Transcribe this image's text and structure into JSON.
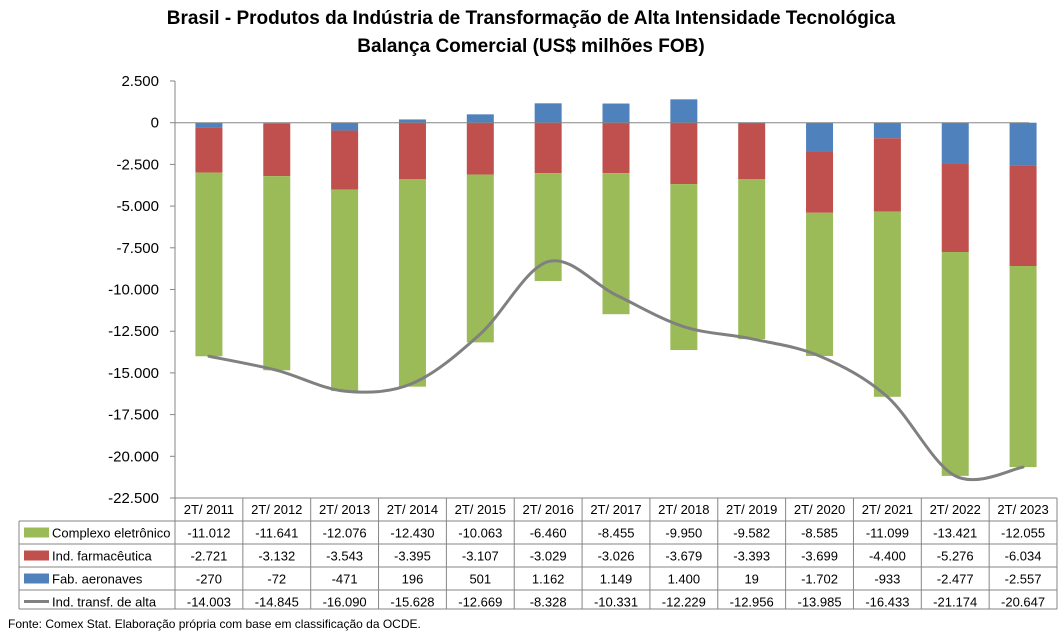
{
  "chart_data": {
    "type": "bar",
    "title": "Brasil - Produtos da Indústria de Transformação de Alta Intensidade Tecnológica",
    "subtitle": "Balança Comercial (US$ milhões FOB)",
    "categories": [
      "2T/ 2011",
      "2T/ 2012",
      "2T/ 2013",
      "2T/ 2014",
      "2T/ 2015",
      "2T/ 2016",
      "2T/ 2017",
      "2T/ 2018",
      "2T/ 2019",
      "2T/ 2020",
      "2T/ 2021",
      "2T/ 2022",
      "2T/ 2023"
    ],
    "ylim": [
      -22500,
      2500
    ],
    "yticks": [
      "2.500",
      "0",
      "-2.500",
      "-5.000",
      "-7.500",
      "-10.000",
      "-12.500",
      "-15.000",
      "-17.500",
      "-20.000",
      "-22.500"
    ],
    "ytick_values": [
      2500,
      0,
      -2500,
      -5000,
      -7500,
      -10000,
      -12500,
      -15000,
      -17500,
      -20000,
      -22500
    ],
    "series": [
      {
        "name": "Complexo eletrônico",
        "kind": "bar",
        "color": "#9bbb59",
        "values": [
          -11012,
          -11641,
          -12076,
          -12430,
          -10063,
          -6460,
          -8455,
          -9950,
          -9582,
          -8585,
          -11099,
          -13421,
          -12055
        ],
        "labels": [
          "-11.012",
          "-11.641",
          "-12.076",
          "-12.430",
          "-10.063",
          "-6.460",
          "-8.455",
          "-9.950",
          "-9.582",
          "-8.585",
          "-11.099",
          "-13.421",
          "-12.055"
        ]
      },
      {
        "name": "Ind. farmacêutica",
        "kind": "bar",
        "color": "#c0504d",
        "values": [
          -2721,
          -3132,
          -3543,
          -3395,
          -3107,
          -3029,
          -3026,
          -3679,
          -3393,
          -3699,
          -4400,
          -5276,
          -6034
        ],
        "labels": [
          "-2.721",
          "-3.132",
          "-3.543",
          "-3.395",
          "-3.107",
          "-3.029",
          "-3.026",
          "-3.679",
          "-3.393",
          "-3.699",
          "-4.400",
          "-5.276",
          "-6.034"
        ]
      },
      {
        "name": "Fab. aeronaves",
        "kind": "bar",
        "color": "#4f81bd",
        "values": [
          -270,
          -72,
          -471,
          196,
          501,
          1162,
          1149,
          1400,
          19,
          -1702,
          -933,
          -2477,
          -2557
        ],
        "labels": [
          "-270",
          "-72",
          "-471",
          "196",
          "501",
          "1.162",
          "1.149",
          "1.400",
          "19",
          "-1.702",
          "-933",
          "-2.477",
          "-2.557"
        ]
      },
      {
        "name": "Ind. transf. de alta",
        "kind": "line",
        "color": "#808080",
        "values": [
          -14003,
          -14845,
          -16090,
          -15628,
          -12669,
          -8328,
          -10331,
          -12229,
          -12956,
          -13985,
          -16433,
          -21174,
          -20647
        ],
        "labels": [
          "-14.003",
          "-14.845",
          "-16.090",
          "-15.628",
          "-12.669",
          "-8.328",
          "-10.331",
          "-12.229",
          "-12.956",
          "-13.985",
          "-16.433",
          "-21.174",
          "-20.647"
        ]
      }
    ],
    "data_table": true,
    "legend": "data table",
    "grid": false
  },
  "source": "Fonte: Comex Stat. Elaboração própria com base em classificação da OCDE."
}
